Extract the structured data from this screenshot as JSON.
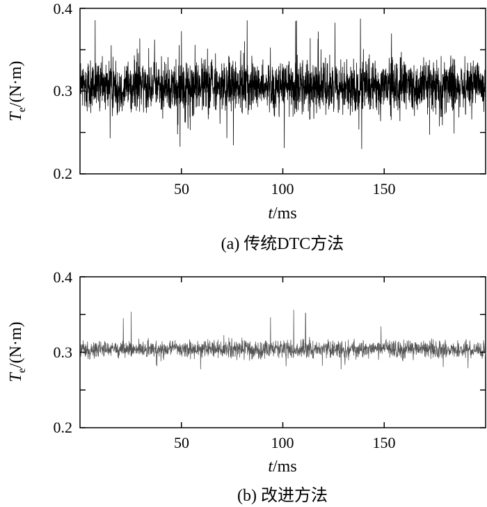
{
  "chart_data": [
    {
      "type": "line",
      "caption": "(a) 传统DTC方法",
      "xlabel": {
        "var": "t",
        "unit": "/ms"
      },
      "ylabel": {
        "var": "T",
        "sub": "e",
        "unit": "/(N·m)"
      },
      "xlim": [
        0,
        200
      ],
      "ylim": [
        0.2,
        0.4
      ],
      "xticks": [
        50,
        100,
        150
      ],
      "yticks": [
        0.2,
        0.3,
        0.4
      ],
      "x_tick_labels": [
        "50",
        "100",
        "150"
      ],
      "y_tick_labels": [
        "0.2",
        "0.3",
        "0.4"
      ],
      "y_minor_ticks": [
        0.25,
        0.35
      ],
      "grid": false,
      "signal": {
        "mean": 0.305,
        "typical_min": 0.262,
        "typical_max": 0.35,
        "peak_min": 0.23,
        "peak_max": 0.39
      },
      "series_color": "#000000"
    },
    {
      "type": "line",
      "caption": "(b) 改进方法",
      "xlabel": {
        "var": "t",
        "unit": "/ms"
      },
      "ylabel": {
        "var": "T",
        "sub": "e",
        "unit": "/(N·m)"
      },
      "xlim": [
        0,
        200
      ],
      "ylim": [
        0.2,
        0.4
      ],
      "xticks": [
        50,
        100,
        150
      ],
      "yticks": [
        0.2,
        0.3,
        0.4
      ],
      "x_tick_labels": [
        "50",
        "100",
        "150"
      ],
      "y_tick_labels": [
        "0.2",
        "0.3",
        "0.4"
      ],
      "y_minor_ticks": [
        0.25,
        0.35
      ],
      "grid": false,
      "signal": {
        "mean": 0.304,
        "typical_min": 0.288,
        "typical_max": 0.32,
        "peak_min": 0.27,
        "peak_max": 0.36
      },
      "series_color": "#555555"
    }
  ]
}
